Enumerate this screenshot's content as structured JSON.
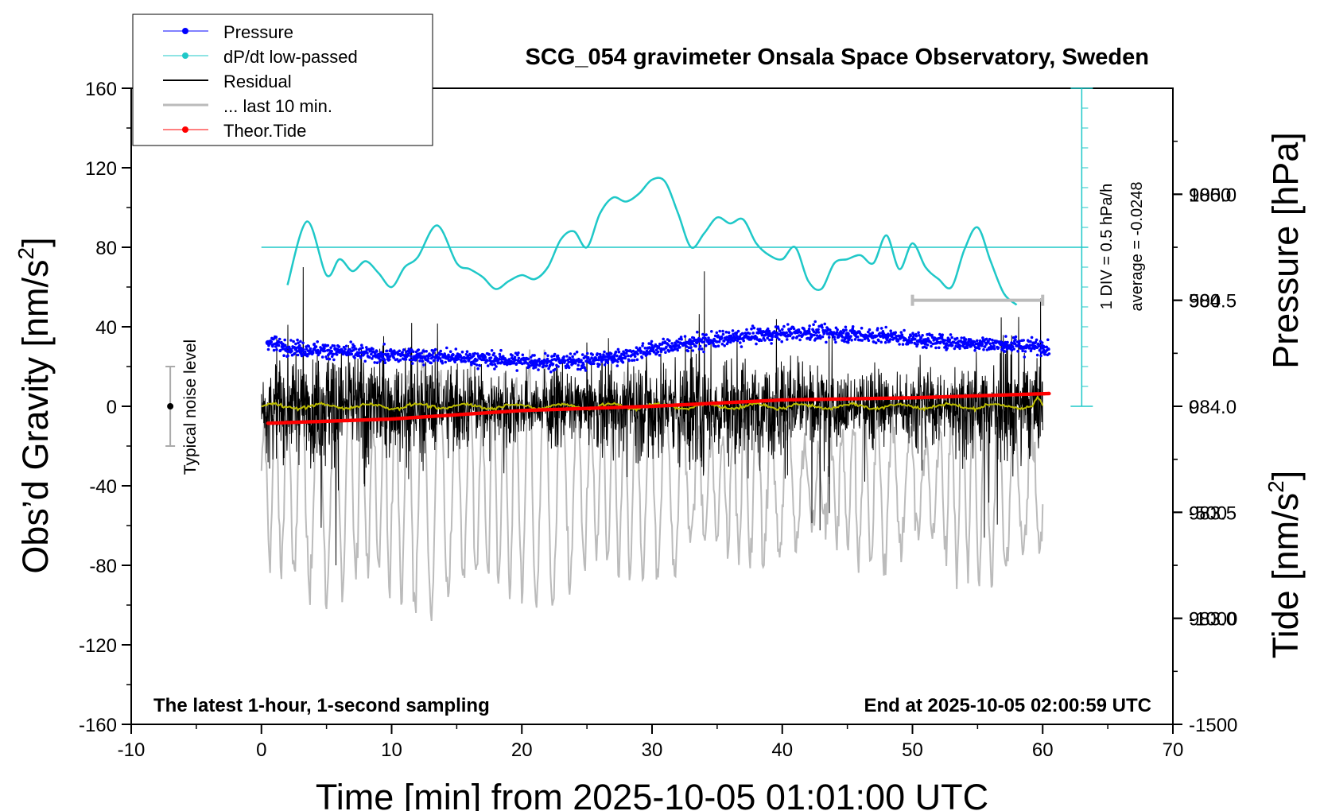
{
  "chart_data": {
    "type": "line",
    "title": "SCG_054 gravimeter Onsala Space Observatory, Sweden",
    "xlabel": "Time [min] from 2025-10-05 01:01:00 UTC",
    "ylabel_left": "Obs’d Gravity [nm/s²]",
    "ylabel_left_main": "Obs’d Gravity [nm/s",
    "ylabel_left_sup": "2",
    "ylabel_left_tail": "]",
    "ylabel_right_pressure": "Pressure [hPa]",
    "ylabel_right_tide": "Tide [nm/s²]",
    "ylabel_right_tide_main": "Tide [nm/s",
    "ylabel_right_tide_sup": "2",
    "ylabel_right_tide_tail": "]",
    "xlim": [
      -10,
      70
    ],
    "ylim_left": [
      -160,
      160
    ],
    "pressure_range": [
      982.5,
      985.5
    ],
    "tide_range": [
      -1500,
      1500
    ],
    "x_ticks": [
      "-10",
      "0",
      "10",
      "20",
      "30",
      "40",
      "50",
      "60",
      "70"
    ],
    "y_ticks_left": [
      "160",
      "120",
      "80",
      "40",
      "0",
      "-40",
      "-80",
      "-120",
      "-160"
    ],
    "pressure_ticks": [
      "985.0",
      "984.5",
      "984.0",
      "983.5",
      "983.0"
    ],
    "tide_ticks": [
      "1000",
      "500",
      "0",
      "-500",
      "-1000",
      "-1500"
    ],
    "legend": {
      "placement": "top-left",
      "entries": [
        "Pressure",
        "dP/dt low-passed",
        "Residual",
        "... last 10 min.",
        "Theor.Tide"
      ]
    },
    "annotations": {
      "bottom_left": "The latest 1-hour, 1-second sampling",
      "bottom_right": "End at 2025-10-05 02:00:59 UTC",
      "noise_label": "Typical noise level",
      "dpdt_scale": "1 DIV = 0.5 hPa/h",
      "dpdt_average": "average = -0.0248"
    },
    "noise_bar": {
      "x": -7,
      "center": 0,
      "half_range": 20
    },
    "last10_bar": {
      "x_start": 50,
      "x_end": 60,
      "tide_level": 500
    },
    "colors": {
      "pressure": "#0000ff",
      "dpdt": "#1fc8c8",
      "residual": "#000000",
      "last10": "#bbbbbb",
      "tide": "#ff0000",
      "smoothed": "#bbbb00"
    },
    "series": [
      {
        "name": "Pressure",
        "axis": "pressure",
        "x": [
          0.5,
          3,
          6,
          9,
          12,
          15,
          18,
          21,
          24,
          27,
          30,
          33,
          36,
          39,
          42,
          45,
          48,
          51,
          54,
          57,
          60
        ],
        "values": [
          984.3,
          984.27,
          984.26,
          984.24,
          984.24,
          984.23,
          984.22,
          984.21,
          984.21,
          984.23,
          984.27,
          984.3,
          984.32,
          984.34,
          984.35,
          984.34,
          984.33,
          984.31,
          984.3,
          984.29,
          984.28
        ]
      },
      {
        "name": "dP/dt low-passed",
        "axis": "left",
        "x": [
          2,
          3.5,
          5,
          6,
          7,
          8,
          9,
          10,
          11,
          12,
          13.5,
          15,
          16,
          17,
          18,
          19,
          20,
          21,
          22,
          23,
          24,
          25,
          26,
          27,
          28,
          29,
          30,
          31,
          32,
          33,
          34,
          35,
          36,
          37,
          38,
          39,
          40,
          41,
          42,
          43,
          44,
          45,
          46,
          47,
          48,
          49,
          50,
          51,
          52,
          53,
          54,
          55,
          56,
          57,
          58
        ],
        "values": [
          61,
          93,
          66,
          74,
          68,
          73,
          67,
          60,
          70,
          75,
          91,
          72,
          69,
          65,
          59,
          63,
          66,
          64,
          70,
          84,
          88,
          80,
          97,
          105,
          103,
          107,
          114,
          113,
          97,
          80,
          87,
          95,
          92,
          94,
          82,
          76,
          74,
          80,
          63,
          59,
          72,
          74,
          76,
          72,
          86,
          69,
          82,
          70,
          64,
          60,
          79,
          90,
          73,
          57,
          51
        ]
      },
      {
        "name": "Theor.Tide",
        "axis": "tide",
        "x": [
          0.5,
          10,
          20,
          30,
          40,
          50,
          60.5
        ],
        "values": [
          -80,
          -60,
          -20,
          0,
          30,
          40,
          60
        ]
      }
    ]
  }
}
